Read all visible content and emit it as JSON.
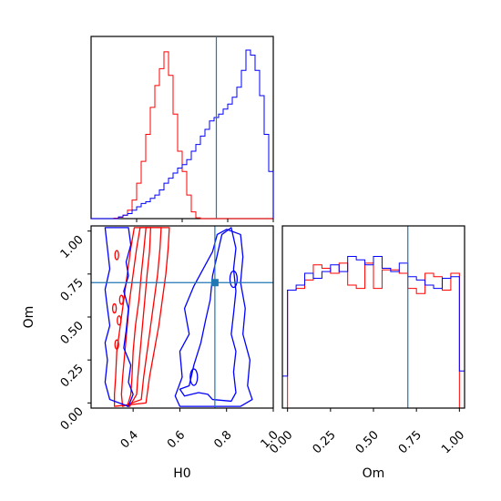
{
  "chart_data": [
    {
      "type": "histogram",
      "panel": "H0-marginal",
      "xlim": [
        0.2,
        1.0
      ],
      "truth": 0.75,
      "y_ticks_shown": false,
      "bin_edges": [
        0.2,
        0.22,
        0.24,
        0.26,
        0.28,
        0.3,
        0.32,
        0.34,
        0.36,
        0.38,
        0.4,
        0.42,
        0.44,
        0.46,
        0.48,
        0.5,
        0.52,
        0.54,
        0.56,
        0.58,
        0.6,
        0.62,
        0.64,
        0.66,
        0.68,
        0.7,
        0.72,
        0.74,
        0.76,
        0.78,
        0.8,
        0.82,
        0.84,
        0.86,
        0.88,
        0.9,
        0.92,
        0.94,
        0.96,
        0.98,
        1.0
      ],
      "series": [
        {
          "color": "#ff0000",
          "values": [
            0,
            0,
            0,
            0,
            0,
            0.003,
            0.008,
            0.02,
            0.05,
            0.11,
            0.21,
            0.34,
            0.5,
            0.66,
            0.79,
            0.89,
            0.99,
            0.85,
            0.62,
            0.4,
            0.28,
            0.14,
            0.04,
            0.005,
            0,
            0,
            0,
            0,
            0,
            0,
            0,
            0,
            0,
            0,
            0,
            0,
            0,
            0,
            0,
            0
          ]
        },
        {
          "color": "#0000ff",
          "values": [
            0,
            0,
            0,
            0,
            0,
            0,
            0.01,
            0.02,
            0.03,
            0.05,
            0.07,
            0.09,
            0.1,
            0.12,
            0.14,
            0.17,
            0.21,
            0.24,
            0.27,
            0.3,
            0.32,
            0.35,
            0.4,
            0.44,
            0.49,
            0.53,
            0.58,
            0.6,
            0.62,
            0.65,
            0.68,
            0.72,
            0.78,
            0.88,
            1.0,
            0.97,
            0.88,
            0.73,
            0.5,
            0.28
          ]
        }
      ]
    },
    {
      "type": "contour",
      "panel": "H0-vs-Om",
      "xlabel": "H0",
      "ylabel": "Om",
      "xlim": [
        0.22,
        1.0
      ],
      "ylim": [
        -0.03,
        1.03
      ],
      "x_ticks": [
        "0.4",
        "0.6",
        "0.8",
        "1.0"
      ],
      "y_ticks": [
        "0.00",
        "0.25",
        "0.50",
        "0.75",
        "1.00"
      ],
      "truth": {
        "x": 0.75,
        "y": 0.7
      },
      "series": [
        {
          "color": "#ff0000",
          "levels": [
            [
              [
                0.385,
                -0.02
              ],
              [
                0.415,
                0.05
              ],
              [
                0.42,
                0.15
              ],
              [
                0.43,
                0.3
              ],
              [
                0.44,
                0.45
              ],
              [
                0.45,
                0.6
              ],
              [
                0.46,
                0.75
              ],
              [
                0.47,
                0.88
              ],
              [
                0.475,
                1.02
              ],
              [
                0.455,
                1.02
              ],
              [
                0.445,
                0.88
              ],
              [
                0.435,
                0.75
              ],
              [
                0.425,
                0.6
              ],
              [
                0.41,
                0.45
              ],
              [
                0.4,
                0.3
              ],
              [
                0.395,
                0.15
              ],
              [
                0.39,
                0.05
              ],
              [
                0.375,
                -0.02
              ]
            ],
            [
              [
                0.355,
                -0.02
              ],
              [
                0.435,
                0.02
              ],
              [
                0.445,
                0.15
              ],
              [
                0.46,
                0.3
              ],
              [
                0.475,
                0.45
              ],
              [
                0.49,
                0.6
              ],
              [
                0.505,
                0.75
              ],
              [
                0.515,
                0.9
              ],
              [
                0.52,
                1.02
              ],
              [
                0.43,
                1.02
              ],
              [
                0.415,
                0.9
              ],
              [
                0.4,
                0.75
              ],
              [
                0.385,
                0.6
              ],
              [
                0.375,
                0.45
              ],
              [
                0.365,
                0.3
              ],
              [
                0.355,
                0.15
              ],
              [
                0.35,
                0.05
              ]
            ],
            [
              [
                0.32,
                -0.02
              ],
              [
                0.455,
                0.0
              ],
              [
                0.47,
                0.15
              ],
              [
                0.49,
                0.3
              ],
              [
                0.51,
                0.45
              ],
              [
                0.525,
                0.6
              ],
              [
                0.54,
                0.75
              ],
              [
                0.55,
                0.9
              ],
              [
                0.555,
                1.02
              ],
              [
                0.405,
                1.02
              ],
              [
                0.39,
                0.9
              ],
              [
                0.375,
                0.75
              ],
              [
                0.36,
                0.6
              ],
              [
                0.345,
                0.45
              ],
              [
                0.33,
                0.3
              ],
              [
                0.325,
                0.15
              ],
              [
                0.32,
                0.05
              ]
            ]
          ]
        },
        {
          "color": "#0000ff",
          "levels": [
            [
              [
                0.38,
                -0.02
              ],
              [
                0.4,
                0.05
              ],
              [
                0.38,
                0.12
              ],
              [
                0.39,
                0.22
              ],
              [
                0.36,
                0.32
              ],
              [
                0.37,
                0.42
              ],
              [
                0.38,
                0.55
              ],
              [
                0.36,
                0.65
              ],
              [
                0.38,
                0.74
              ],
              [
                0.37,
                0.82
              ],
              [
                0.39,
                0.92
              ],
              [
                0.38,
                1.02
              ],
              [
                0.28,
                1.02
              ],
              [
                0.29,
                0.9
              ],
              [
                0.3,
                0.78
              ],
              [
                0.28,
                0.66
              ],
              [
                0.29,
                0.55
              ],
              [
                0.3,
                0.45
              ],
              [
                0.28,
                0.35
              ],
              [
                0.29,
                0.25
              ],
              [
                0.28,
                0.12
              ],
              [
                0.3,
                0.02
              ]
            ],
            [
              [
                0.64,
                0.1
              ],
              [
                0.66,
                0.22
              ],
              [
                0.69,
                0.35
              ],
              [
                0.71,
                0.48
              ],
              [
                0.73,
                0.6
              ],
              [
                0.74,
                0.74
              ],
              [
                0.76,
                0.86
              ],
              [
                0.78,
                0.98
              ],
              [
                0.82,
                1.02
              ],
              [
                0.84,
                0.9
              ],
              [
                0.83,
                0.78
              ],
              [
                0.84,
                0.65
              ],
              [
                0.83,
                0.52
              ],
              [
                0.82,
                0.4
              ],
              [
                0.84,
                0.3
              ],
              [
                0.83,
                0.18
              ],
              [
                0.84,
                0.06
              ],
              [
                0.82,
                0.01
              ],
              [
                0.74,
                0.02
              ],
              [
                0.72,
                0.05
              ],
              [
                0.68,
                0.06
              ],
              [
                0.62,
                0.04
              ],
              [
                0.6,
                0.08
              ]
            ],
            [
              [
                0.58,
                0.04
              ],
              [
                0.61,
                0.15
              ],
              [
                0.6,
                0.3
              ],
              [
                0.64,
                0.4
              ],
              [
                0.62,
                0.55
              ],
              [
                0.66,
                0.68
              ],
              [
                0.7,
                0.78
              ],
              [
                0.74,
                0.88
              ],
              [
                0.76,
                0.98
              ],
              [
                0.8,
                1.01
              ],
              [
                0.86,
                0.98
              ],
              [
                0.87,
                0.85
              ],
              [
                0.86,
                0.7
              ],
              [
                0.88,
                0.55
              ],
              [
                0.87,
                0.4
              ],
              [
                0.9,
                0.25
              ],
              [
                0.89,
                0.1
              ],
              [
                0.91,
                0.02
              ],
              [
                0.86,
                -0.02
              ],
              [
                0.6,
                -0.02
              ]
            ]
          ]
        }
      ]
    },
    {
      "type": "histogram",
      "panel": "Om-marginal",
      "xlabel": "Om",
      "xlim": [
        -0.03,
        1.03
      ],
      "x_ticks": [
        "0.00",
        "0.25",
        "0.50",
        "0.75",
        "1.00"
      ],
      "truth": 0.7,
      "y_ticks_shown": false,
      "bin_edges": [
        -0.03,
        0.0,
        0.05,
        0.1,
        0.15,
        0.2,
        0.25,
        0.3,
        0.35,
        0.4,
        0.45,
        0.5,
        0.55,
        0.6,
        0.65,
        0.7,
        0.75,
        0.8,
        0.85,
        0.9,
        0.95,
        1.0,
        1.03
      ],
      "series": [
        {
          "color": "#ff0000",
          "values": [
            0,
            0.7,
            0.71,
            0.76,
            0.85,
            0.83,
            0.8,
            0.86,
            0.73,
            0.71,
            0.86,
            0.71,
            0.82,
            0.82,
            0.8,
            0.71,
            0.68,
            0.8,
            0.78,
            0.7,
            0.8,
            0
          ]
        },
        {
          "color": "#0000ff",
          "values": [
            0.19,
            0.7,
            0.73,
            0.8,
            0.77,
            0.81,
            0.85,
            0.81,
            0.9,
            0.88,
            0.85,
            0.9,
            0.83,
            0.81,
            0.86,
            0.78,
            0.76,
            0.73,
            0.71,
            0.77,
            0.78,
            0.22
          ]
        }
      ]
    }
  ]
}
